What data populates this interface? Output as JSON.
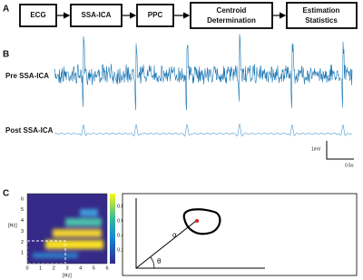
{
  "panels": {
    "a": {
      "label": "A",
      "steps": [
        "ECG",
        "SSA-ICA",
        "PPC",
        [
          "Centroid",
          "Determination"
        ],
        [
          "Estimation",
          "Statistics"
        ]
      ]
    },
    "b": {
      "label": "B",
      "traces": [
        "Pre SSA-ICA",
        "Post SSA-ICA"
      ],
      "scale_y": "1mV",
      "scale_x": "0.5s"
    },
    "c": {
      "label": "C",
      "y_axis_label": "[Hz]",
      "x_axis_label": "[Hz]",
      "x_ticks": [
        "0",
        "1",
        "2",
        "3",
        "4",
        "5",
        "6"
      ],
      "y_ticks": [
        "1",
        "2",
        "3",
        "4",
        "5",
        "6"
      ],
      "colorbar_ticks": [
        "0.2",
        "0.4",
        "0.6",
        "0.8"
      ],
      "angle_labels": [
        "α",
        "θ"
      ]
    }
  }
}
